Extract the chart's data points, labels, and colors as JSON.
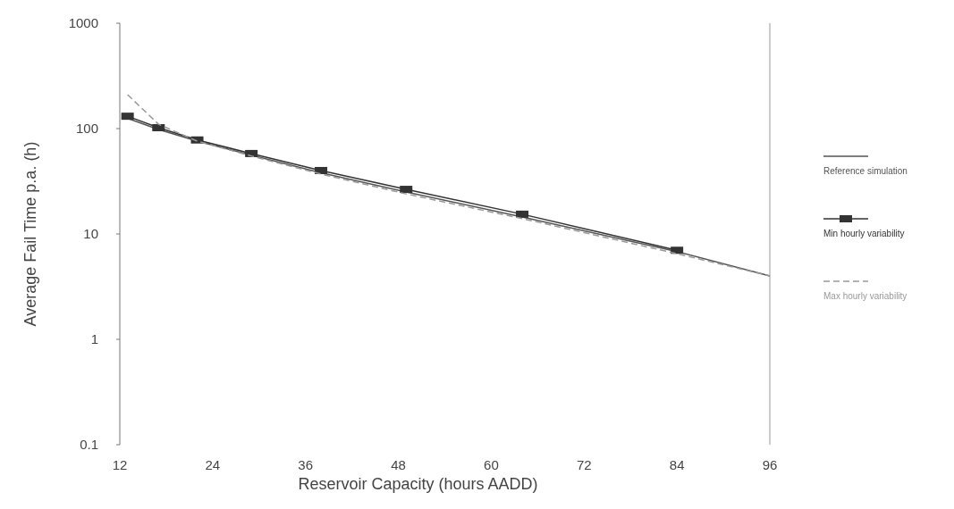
{
  "chart_data": {
    "type": "line",
    "xlabel": "Reservoir Capacity (hours AADD)",
    "ylabel": "Average Fail Time p.a. (h)",
    "log": "y",
    "grid": false,
    "legend": "right",
    "xlim": [
      12,
      96
    ],
    "xticks": [
      12,
      24,
      36,
      48,
      60,
      72,
      84,
      96
    ],
    "ylim": [
      0.1,
      1000
    ],
    "yticks": [
      0.1,
      1,
      10,
      100,
      1000
    ],
    "series": [
      {
        "name": "Reference simulation",
        "color": "#555555",
        "marker": "none",
        "line_style": "solid",
        "x": [
          13,
          17,
          22,
          29,
          38,
          49,
          64,
          84,
          96
        ],
        "values": [
          125,
          98,
          76,
          56,
          38,
          25,
          14.5,
          6.8,
          4
        ]
      },
      {
        "name": "Min hourly variability",
        "color": "#333333",
        "marker": "square",
        "line_style": "solid",
        "x": [
          13,
          17,
          22,
          29,
          38,
          49,
          64,
          84
        ],
        "values": [
          131,
          102,
          78,
          58,
          40,
          26.5,
          15.4,
          7.0
        ]
      },
      {
        "name": "Max hourly variability",
        "color": "#999999",
        "marker": "none",
        "line_style": "dashed",
        "x": [
          13,
          17,
          22,
          29,
          38,
          49,
          64,
          84,
          96
        ],
        "values": [
          210,
          110,
          76,
          55,
          37,
          24,
          14,
          6.5,
          4.0
        ]
      }
    ]
  }
}
